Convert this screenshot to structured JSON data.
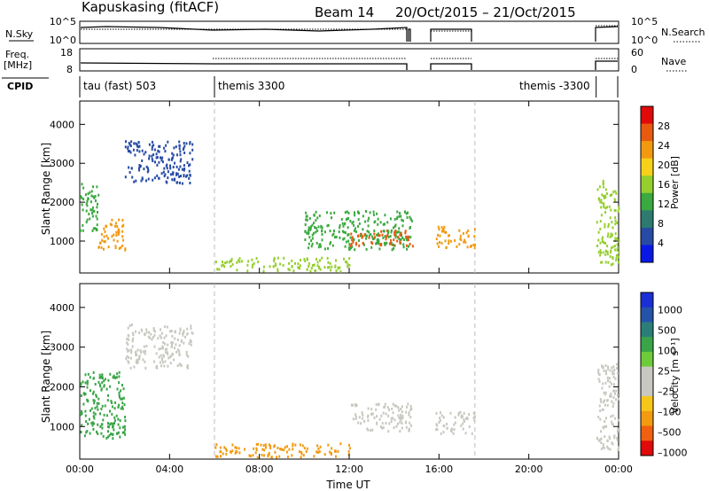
{
  "header": {
    "station": "Kapuskasing (fitACF)",
    "beam": "Beam 14",
    "date_range": "20/Oct/2015 – 21/Oct/2015"
  },
  "summary_panels": {
    "nsky_label": "N.Sky",
    "nsky_ticks": [
      "10^5",
      "10^0"
    ],
    "nsearch_label": "N.Search",
    "nsearch_ticks": [
      "10^5",
      "10^0"
    ],
    "freq_label": "Freq.",
    "freq_unit": "[MHz]",
    "freq_ticks": [
      "18",
      "8"
    ],
    "nave_label": "Nave",
    "nave_ticks": [
      "60",
      "0"
    ],
    "cpid_label": "CPID",
    "cpid_segments": [
      {
        "label": "tau (fast) 503",
        "start_hr": 0
      },
      {
        "label": "themis 3300",
        "start_hr": 6.0
      },
      {
        "label": "themis -3300",
        "start_hr": 23.0
      }
    ]
  },
  "colors": {
    "power": [
      "#0a18e6",
      "#274ba5",
      "#2d7b6e",
      "#3aa93f",
      "#95cf2e",
      "#f6d117",
      "#f19a10",
      "#e85a10",
      "#e00a0a"
    ],
    "velocity": [
      "#e00a0a",
      "#f06010",
      "#f29a10",
      "#f6c618",
      "#c8c8c0",
      "#c8c8c0",
      "#6ecb3a",
      "#3aa548",
      "#2b7e78",
      "#2553a8",
      "#1a2fd6"
    ],
    "grey": "#c8c8c0"
  },
  "chart_data": [
    {
      "type": "heatmap",
      "title": "Power",
      "xlabel": "",
      "ylabel": "Slant Range [km]",
      "xlim_hr": [
        0,
        24
      ],
      "ylim": [
        180,
        4600
      ],
      "x_ticks": [
        "00:00",
        "04:00",
        "08:00",
        "12:00",
        "16:00",
        "20:00",
        "00:00"
      ],
      "y_ticks": [
        1000,
        2000,
        3000,
        4000
      ],
      "colorbar": {
        "label": "Power [dB]",
        "range": [
          0,
          32
        ],
        "ticks": [
          "4",
          "8",
          "12",
          "16",
          "20",
          "24",
          "28"
        ]
      },
      "regions": [
        {
          "t": [
            0.0,
            0.8
          ],
          "r": [
            1200,
            2500
          ],
          "level": 14
        },
        {
          "t": [
            0.8,
            2.0
          ],
          "r": [
            800,
            1600
          ],
          "level": 24
        },
        {
          "t": [
            2.0,
            5.0
          ],
          "r": [
            2500,
            3600
          ],
          "level": 6
        },
        {
          "t": [
            6.0,
            12.0
          ],
          "r": [
            250,
            600
          ],
          "level": 16
        },
        {
          "t": [
            10.0,
            14.8
          ],
          "r": [
            800,
            1800
          ],
          "level": 14
        },
        {
          "t": [
            12.0,
            14.8
          ],
          "r": [
            900,
            1300
          ],
          "level": 26
        },
        {
          "t": [
            15.8,
            17.6
          ],
          "r": [
            850,
            1400
          ],
          "level": 22
        },
        {
          "t": [
            23.0,
            24.0
          ],
          "r": [
            400,
            2600
          ],
          "level": 16
        }
      ]
    },
    {
      "type": "heatmap",
      "title": "Velocity",
      "xlabel": "Time UT",
      "ylabel": "Slant Range [km]",
      "xlim_hr": [
        0,
        24
      ],
      "ylim": [
        180,
        4600
      ],
      "x_ticks": [
        "00:00",
        "04:00",
        "08:00",
        "12:00",
        "16:00",
        "20:00",
        "00:00"
      ],
      "y_ticks": [
        1000,
        2000,
        3000,
        4000
      ],
      "colorbar": {
        "label": "Velocity [m s⁻¹]",
        "ticks": [
          "1000",
          "500",
          "100",
          "25",
          "–25",
          "–100",
          "–500",
          "–1000"
        ]
      },
      "regions": [
        {
          "t": [
            0.0,
            2.0
          ],
          "r": [
            700,
            2400
          ],
          "level": 100
        },
        {
          "t": [
            2.0,
            5.0
          ],
          "r": [
            2500,
            3600
          ],
          "level": 0
        },
        {
          "t": [
            6.0,
            12.0
          ],
          "r": [
            250,
            600
          ],
          "level": -100
        },
        {
          "t": [
            12.0,
            14.8
          ],
          "r": [
            900,
            1600
          ],
          "level": 0
        },
        {
          "t": [
            15.8,
            17.6
          ],
          "r": [
            850,
            1400
          ],
          "level": 0
        },
        {
          "t": [
            23.0,
            24.0
          ],
          "r": [
            400,
            2600
          ],
          "level": 0
        }
      ]
    }
  ]
}
